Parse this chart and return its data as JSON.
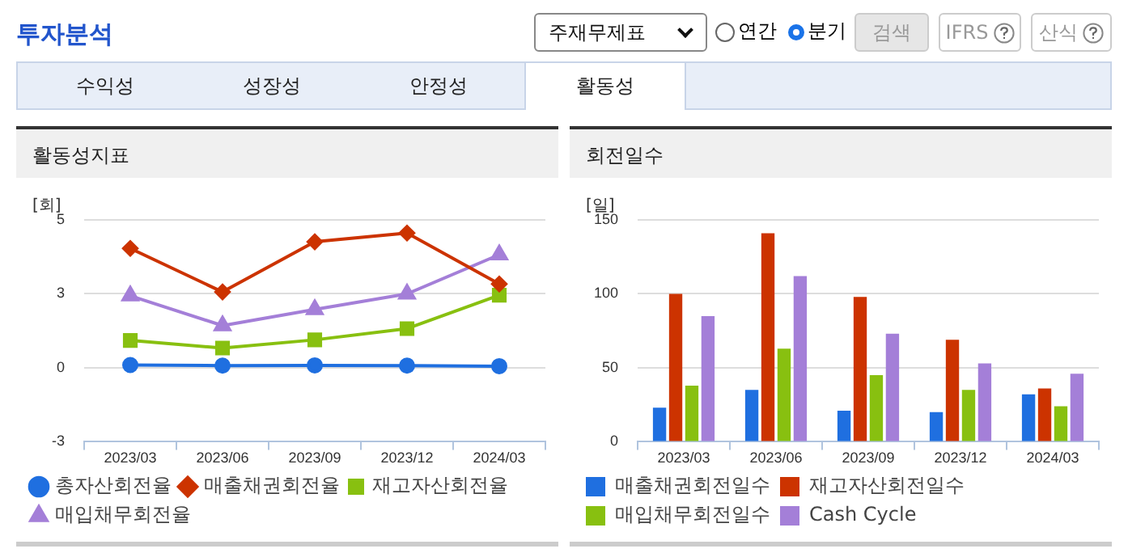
{
  "chart_data": [
    {
      "type": "other",
      "title": "투자분석",
      "annotations": [
        "주재무제표",
        "연간",
        "분기",
        "검색",
        "IFRS",
        "산식",
        "수익성",
        "성장성",
        "안정성",
        "활동성"
      ]
    },
    {
      "type": "line",
      "title": "활동성지표",
      "ylabel": "[회]",
      "categories": [
        "2023/03",
        "2023/06",
        "2023/09",
        "2023/12",
        "2024/03"
      ],
      "ylim": [
        -2.7,
        5.4
      ],
      "yticks": [
        {
          "value": -2.7,
          "label": "-3"
        },
        {
          "value": 0,
          "label": "0"
        },
        {
          "value": 2.7,
          "label": "3"
        },
        {
          "value": 5.4,
          "label": "5"
        }
      ],
      "grid": "y",
      "legend": "bottom",
      "line_style": "solid",
      "series": [
        {
          "name": "총자산회전율",
          "color": "#1f6fe0",
          "marker": "circle",
          "values": [
            0.1,
            0.08,
            0.09,
            0.08,
            0.06
          ]
        },
        {
          "name": "매출채권회전율",
          "color": "#cc3300",
          "marker": "diamond",
          "values": [
            4.36,
            2.77,
            4.6,
            4.92,
            3.06
          ]
        },
        {
          "name": "재고자산회전율",
          "color": "#88c010",
          "marker": "square",
          "values": [
            1.0,
            0.72,
            1.02,
            1.43,
            2.65
          ]
        },
        {
          "name": "매입채무회전율",
          "color": "#a47fd8",
          "marker": "triangle",
          "values": [
            2.63,
            1.54,
            2.13,
            2.7,
            4.13
          ]
        }
      ]
    },
    {
      "type": "bar",
      "title": "회전일수",
      "ylabel": "[일]",
      "categories": [
        "2023/03",
        "2023/06",
        "2023/09",
        "2023/12",
        "2024/03"
      ],
      "ylim": [
        0,
        150
      ],
      "yticks": [
        0,
        50,
        100,
        150
      ],
      "grid": "y",
      "legend": "bottom",
      "series": [
        {
          "name": "매출채권회전일수",
          "color": "#1f6fe0",
          "values": [
            23,
            35,
            21,
            20,
            32
          ]
        },
        {
          "name": "재고자산회전일수",
          "color": "#cc3300",
          "values": [
            100,
            141,
            98,
            69,
            36
          ]
        },
        {
          "name": "매입채무회전일수",
          "color": "#88c010",
          "values": [
            38,
            63,
            45,
            35,
            24
          ]
        },
        {
          "name": "Cash Cycle",
          "color": "#a47fd8",
          "values": [
            85,
            112,
            73,
            53,
            46
          ]
        }
      ]
    }
  ]
}
